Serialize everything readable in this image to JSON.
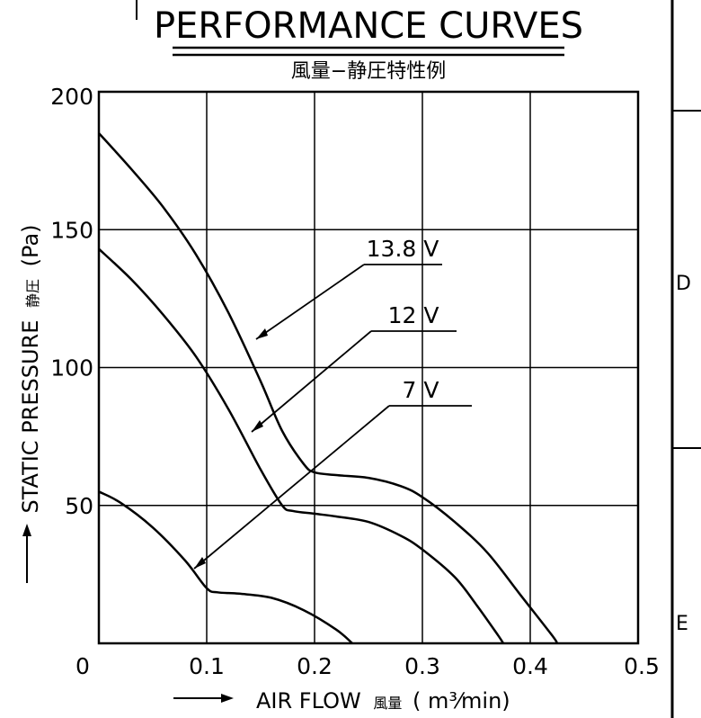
{
  "chart_data": {
    "type": "line",
    "title": "PERFORMANCE CURVES",
    "subtitle": "風量−静圧特性例",
    "xlabel": "AIR FLOW",
    "xlabel_jp": "風量",
    "xunit": "( m³⁄min)",
    "ylabel": "STATIC PRESSURE",
    "ylabel_jp": "静圧",
    "yunit": "(Pa)",
    "xlim": [
      0,
      0.5
    ],
    "ylim": [
      0,
      200
    ],
    "xticks": [
      "0",
      "0.1",
      "0.2",
      "0.3",
      "0.4",
      "0.5"
    ],
    "yticks": [
      "0",
      "50",
      "100",
      "150",
      "200"
    ],
    "grid": true,
    "series": [
      {
        "name": "13.8 V",
        "x": [
          0,
          0.03,
          0.06,
          0.09,
          0.12,
          0.15,
          0.17,
          0.19,
          0.2,
          0.22,
          0.25,
          0.28,
          0.3,
          0.33,
          0.36,
          0.39,
          0.42,
          0.425
        ],
        "y": [
          185,
          172,
          158,
          141,
          120,
          95,
          77,
          65,
          62,
          61,
          60,
          57,
          53,
          44,
          33,
          18,
          3,
          0
        ]
      },
      {
        "name": "12 V",
        "x": [
          0,
          0.03,
          0.06,
          0.09,
          0.12,
          0.15,
          0.17,
          0.18,
          0.2,
          0.22,
          0.25,
          0.28,
          0.3,
          0.33,
          0.35,
          0.37,
          0.375
        ],
        "y": [
          143,
          132,
          119,
          104,
          85,
          63,
          50,
          48,
          47,
          46,
          44,
          39,
          34,
          24,
          14,
          3,
          0
        ]
      },
      {
        "name": "7 V",
        "x": [
          0,
          0.02,
          0.05,
          0.08,
          0.1,
          0.11,
          0.13,
          0.16,
          0.19,
          0.22,
          0.235
        ],
        "y": [
          55,
          51,
          42,
          30,
          20,
          18.5,
          18,
          16.5,
          12,
          5,
          0
        ]
      }
    ],
    "annotations": [
      "13.8 V",
      "12 V",
      "7 V"
    ]
  },
  "margin_marks": {
    "letter_d": "D",
    "letter_e": "E"
  }
}
